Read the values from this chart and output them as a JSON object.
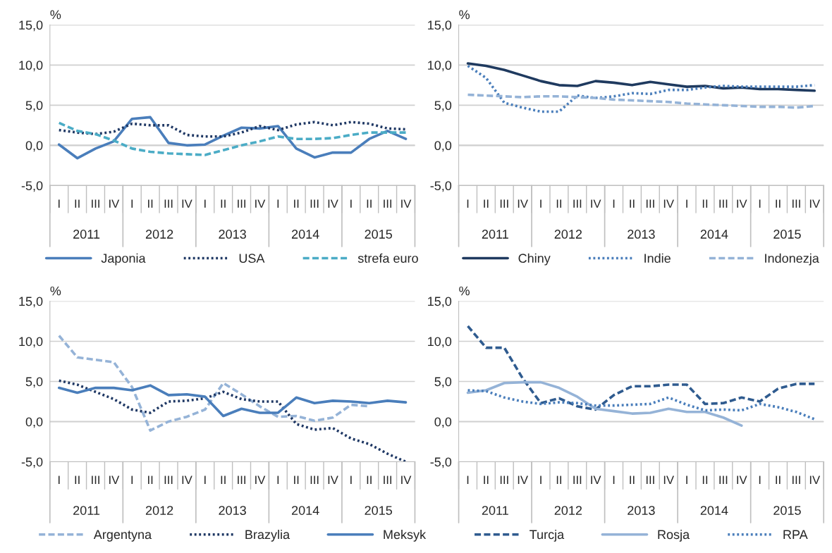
{
  "chart_data": [
    {
      "type": "line",
      "ylabel": "%",
      "categories": [
        "I",
        "II",
        "III",
        "IV",
        "I",
        "II",
        "III",
        "IV",
        "I",
        "II",
        "III",
        "IV",
        "I",
        "II",
        "III",
        "IV",
        "I",
        "II",
        "III",
        "IV"
      ],
      "annotations": [
        "2011",
        "2012",
        "2013",
        "2014",
        "2015"
      ],
      "ylim": [
        -5,
        15
      ],
      "yticks": [
        {
          "value": -5,
          "label": "-5,0"
        },
        {
          "value": 0,
          "label": "0,0"
        },
        {
          "value": 5,
          "label": "5,0"
        },
        {
          "value": 10,
          "label": "10,0"
        },
        {
          "value": 15,
          "label": "15,0"
        }
      ],
      "grid": "y",
      "legend": "bottom",
      "series": [
        {
          "name": "Japonia",
          "color": "#4a7ebb",
          "line_style": "solid",
          "values": [
            0.1,
            -1.6,
            -0.4,
            0.5,
            3.3,
            3.5,
            0.3,
            0.0,
            0.1,
            1.2,
            2.2,
            2.1,
            2.4,
            -0.4,
            -1.5,
            -0.9,
            -0.9,
            0.8,
            1.8,
            0.8
          ]
        },
        {
          "name": "USA",
          "color": "#1f3864",
          "line_style": "dotted",
          "values": [
            1.9,
            1.6,
            1.4,
            1.7,
            2.7,
            2.5,
            2.5,
            1.3,
            1.1,
            1.1,
            1.6,
            2.4,
            1.9,
            2.6,
            2.9,
            2.5,
            2.9,
            2.7,
            2.1,
            2.0
          ]
        },
        {
          "name": "strefa euro",
          "color": "#4bacc6",
          "line_style": "dashed",
          "values": [
            2.8,
            1.8,
            1.4,
            0.6,
            -0.4,
            -0.8,
            -1.0,
            -1.1,
            -1.2,
            -0.6,
            0.0,
            0.5,
            1.1,
            0.8,
            0.8,
            0.9,
            1.3,
            1.6,
            1.6,
            1.6
          ]
        }
      ]
    },
    {
      "type": "line",
      "ylabel": "%",
      "categories": [
        "I",
        "II",
        "III",
        "IV",
        "I",
        "II",
        "III",
        "IV",
        "I",
        "II",
        "III",
        "IV",
        "I",
        "II",
        "III",
        "IV",
        "I",
        "II",
        "III",
        "IV"
      ],
      "annotations": [
        "2011",
        "2012",
        "2013",
        "2014",
        "2015"
      ],
      "ylim": [
        -5,
        15
      ],
      "yticks": [
        {
          "value": -5,
          "label": "-5,0"
        },
        {
          "value": 0,
          "label": "0,0"
        },
        {
          "value": 5,
          "label": "5,0"
        },
        {
          "value": 10,
          "label": "10,0"
        },
        {
          "value": 15,
          "label": "15,0"
        }
      ],
      "grid": "y",
      "legend": "bottom",
      "series": [
        {
          "name": "Chiny",
          "color": "#1f3a5f",
          "line_style": "solid",
          "values": [
            10.2,
            9.9,
            9.4,
            8.7,
            8.0,
            7.5,
            7.4,
            8.0,
            7.8,
            7.5,
            7.9,
            7.6,
            7.3,
            7.4,
            7.1,
            7.2,
            7.0,
            7.0,
            6.9,
            6.8
          ]
        },
        {
          "name": "Indie",
          "color": "#4a7ebb",
          "line_style": "dotted",
          "values": [
            9.9,
            8.4,
            5.3,
            4.7,
            4.2,
            4.2,
            6.2,
            5.9,
            6.1,
            6.5,
            6.4,
            6.9,
            6.9,
            7.2,
            7.4,
            7.3,
            7.3,
            7.3,
            7.3,
            7.5
          ]
        },
        {
          "name": "Indonezja",
          "color": "#95b3d7",
          "line_style": "dashed",
          "values": [
            6.3,
            6.2,
            6.1,
            6.0,
            6.1,
            6.1,
            6.0,
            5.9,
            5.7,
            5.6,
            5.5,
            5.4,
            5.2,
            5.1,
            5.0,
            4.9,
            4.8,
            4.8,
            4.7,
            4.9
          ]
        }
      ]
    },
    {
      "type": "line",
      "ylabel": "%",
      "categories": [
        "I",
        "II",
        "III",
        "IV",
        "I",
        "II",
        "III",
        "IV",
        "I",
        "II",
        "III",
        "IV",
        "I",
        "II",
        "III",
        "IV",
        "I",
        "II",
        "III",
        "IV"
      ],
      "annotations": [
        "2011",
        "2012",
        "2013",
        "2014",
        "2015"
      ],
      "ylim": [
        -5,
        15
      ],
      "yticks": [
        {
          "value": -5,
          "label": "-5,0"
        },
        {
          "value": 0,
          "label": "0,0"
        },
        {
          "value": 5,
          "label": "5,0"
        },
        {
          "value": 10,
          "label": "10,0"
        },
        {
          "value": 15,
          "label": "15,0"
        }
      ],
      "grid": "y",
      "legend": "bottom",
      "series": [
        {
          "name": "Argentyna",
          "color": "#95b3d7",
          "line_style": "dashed",
          "values": [
            10.7,
            8.0,
            7.7,
            7.4,
            4.3,
            -1.1,
            0.0,
            0.6,
            1.5,
            4.8,
            3.4,
            1.9,
            0.6,
            0.7,
            0.1,
            0.5,
            2.1,
            1.9,
            null,
            null
          ]
        },
        {
          "name": "Brazylia",
          "color": "#1f3864",
          "line_style": "dotted",
          "values": [
            5.1,
            4.6,
            3.7,
            2.8,
            1.5,
            1.1,
            2.5,
            2.6,
            2.9,
            3.7,
            2.8,
            2.5,
            2.5,
            -0.3,
            -1.0,
            -0.8,
            -2.1,
            -2.8,
            -4.0,
            -5.0
          ]
        },
        {
          "name": "Meksyk",
          "color": "#4a7ebb",
          "line_style": "solid",
          "values": [
            4.2,
            3.6,
            4.2,
            4.2,
            3.9,
            4.5,
            3.3,
            3.4,
            3.1,
            0.7,
            1.6,
            1.1,
            1.1,
            3.0,
            2.3,
            2.6,
            2.5,
            2.3,
            2.6,
            2.4
          ]
        }
      ]
    },
    {
      "type": "line",
      "ylabel": "%",
      "categories": [
        "I",
        "II",
        "III",
        "IV",
        "I",
        "II",
        "III",
        "IV",
        "I",
        "II",
        "III",
        "IV",
        "I",
        "II",
        "III",
        "IV",
        "I",
        "II",
        "III",
        "IV"
      ],
      "annotations": [
        "2011",
        "2012",
        "2013",
        "2014",
        "2015"
      ],
      "ylim": [
        -5,
        15
      ],
      "yticks": [
        {
          "value": -5,
          "label": "-5,0"
        },
        {
          "value": 0,
          "label": "0,0"
        },
        {
          "value": 5,
          "label": "5,0"
        },
        {
          "value": 10,
          "label": "10,0"
        },
        {
          "value": 15,
          "label": "15,0"
        }
      ],
      "grid": "y",
      "legend": "bottom",
      "series": [
        {
          "name": "Turcja",
          "color": "#2f5b8f",
          "line_style": "dashed",
          "values": [
            11.9,
            9.2,
            9.2,
            5.4,
            2.3,
            2.9,
            1.9,
            1.5,
            3.3,
            4.4,
            4.4,
            4.6,
            4.6,
            2.2,
            2.3,
            3.0,
            2.5,
            4.1,
            4.7,
            4.7
          ]
        },
        {
          "name": "Rosja",
          "color": "#95b3d7",
          "line_style": "solid",
          "values": [
            3.6,
            3.9,
            4.8,
            4.9,
            4.9,
            4.2,
            3.1,
            1.6,
            1.3,
            1.0,
            1.1,
            1.6,
            1.2,
            1.2,
            0.5,
            -0.5,
            null,
            null,
            null,
            null
          ]
        },
        {
          "name": "RPA",
          "color": "#4a7ebb",
          "line_style": "dotted",
          "values": [
            3.9,
            3.8,
            3.0,
            2.5,
            2.2,
            2.4,
            2.3,
            2.0,
            2.0,
            2.1,
            2.2,
            3.0,
            2.1,
            1.4,
            1.5,
            1.4,
            2.2,
            1.8,
            1.2,
            0.3
          ]
        }
      ]
    }
  ]
}
